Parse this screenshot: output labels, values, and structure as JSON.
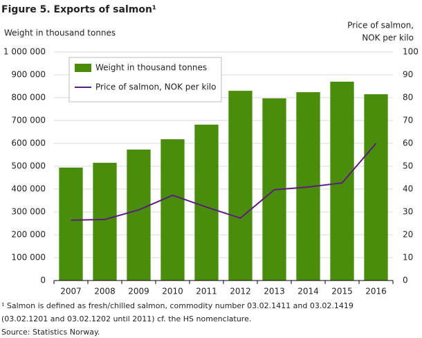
{
  "chart_data": {
    "type": "combo",
    "title": "Figure 5. Exports of salmon¹",
    "ylabel": "Weight in thousand tonnes",
    "y2label": [
      "Price of salmon,",
      "NOK per kilo"
    ],
    "categories": [
      "2007",
      "2008",
      "2009",
      "2010",
      "2011",
      "2012",
      "2013",
      "2014",
      "2015",
      "2016"
    ],
    "series": [
      {
        "name": "Weight in thousand tonnes",
        "type": "bar",
        "color": "#4a8c0b",
        "values": [
          494000,
          515000,
          573000,
          618000,
          682000,
          830000,
          797000,
          824000,
          870000,
          815000
        ]
      },
      {
        "name": "Price of salmon, NOK per kilo",
        "type": "line",
        "axis": "y2",
        "color": "#5b1e7a",
        "values": [
          26.4,
          26.7,
          30.9,
          37.3,
          32.1,
          27.3,
          39.7,
          40.9,
          42.7,
          60.0
        ]
      }
    ],
    "ylim": [
      0,
      1000000
    ],
    "yticks": [
      0,
      {
        "value": 100000,
        "label": "100 000"
      },
      {
        "value": 200000,
        "label": "200 000"
      },
      {
        "value": 300000,
        "label": "300 000"
      },
      {
        "value": 400000,
        "label": "400 000"
      },
      {
        "value": 500000,
        "label": "500 000"
      },
      {
        "value": 600000,
        "label": "600 000"
      },
      {
        "value": 700000,
        "label": "700 000"
      },
      {
        "value": 800000,
        "label": "800 000"
      },
      {
        "value": 900000,
        "label": "900 000"
      },
      {
        "value": 1000000,
        "label": "1 000 000"
      }
    ],
    "y2lim": [
      0,
      100
    ],
    "y2ticks": [
      0,
      10,
      20,
      30,
      40,
      50,
      60,
      70,
      80,
      90,
      100
    ],
    "grid": true,
    "legend": "top-left",
    "notes": [
      "¹ Salmon is defined as fresh/chilled salmon, commodity number 03.02.1411 and 03.02.1419",
      "(03.02.1201 and 03.02.1202 until 2011) cf. the HS nomenclature."
    ],
    "source": "Source: Statistics Norway."
  }
}
